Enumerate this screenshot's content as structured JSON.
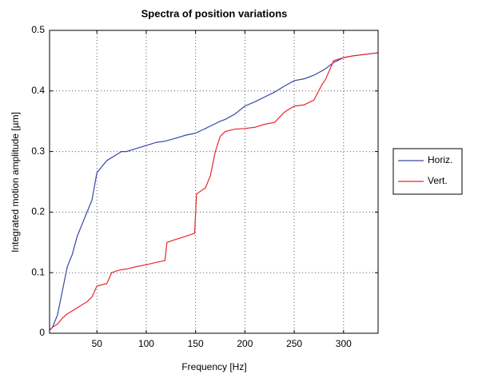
{
  "chart_data": {
    "type": "line",
    "title": "Spectra of position variations",
    "x_label": "Frequency [Hz]",
    "y_label": "Integrated motion amplitude [µm]",
    "x": [
      2,
      5,
      10,
      15,
      20,
      25,
      30,
      35,
      40,
      45,
      50,
      55,
      60,
      65,
      70,
      75,
      80,
      90,
      100,
      110,
      119,
      121,
      130,
      140,
      149,
      151,
      160,
      165,
      170,
      175,
      180,
      190,
      200,
      210,
      220,
      230,
      240,
      250,
      260,
      270,
      278,
      282,
      290,
      300,
      310,
      320,
      335
    ],
    "series": [
      {
        "name": "Horiz.",
        "color": "#3a46a8",
        "values": [
          0.005,
          0.01,
          0.03,
          0.07,
          0.11,
          0.13,
          0.16,
          0.18,
          0.2,
          0.22,
          0.265,
          0.275,
          0.285,
          0.29,
          0.295,
          0.3,
          0.3,
          0.305,
          0.31,
          0.315,
          0.317,
          0.318,
          0.322,
          0.327,
          0.33,
          0.331,
          0.338,
          0.342,
          0.346,
          0.35,
          0.353,
          0.362,
          0.375,
          0.382,
          0.39,
          0.398,
          0.408,
          0.417,
          0.42,
          0.426,
          0.433,
          0.437,
          0.447,
          0.455,
          0.458,
          0.46,
          0.463
        ]
      },
      {
        "name": "Vert.",
        "color": "#e8282c",
        "values": [
          0.005,
          0.01,
          0.015,
          0.025,
          0.032,
          0.037,
          0.042,
          0.047,
          0.052,
          0.06,
          0.078,
          0.08,
          0.082,
          0.1,
          0.103,
          0.105,
          0.106,
          0.11,
          0.113,
          0.117,
          0.12,
          0.15,
          0.155,
          0.16,
          0.165,
          0.23,
          0.24,
          0.26,
          0.3,
          0.325,
          0.333,
          0.337,
          0.338,
          0.34,
          0.345,
          0.348,
          0.365,
          0.375,
          0.377,
          0.385,
          0.41,
          0.42,
          0.45,
          0.455,
          0.458,
          0.46,
          0.463
        ]
      }
    ],
    "xlim": [
      2,
      335
    ],
    "xticks": [
      50,
      100,
      150,
      200,
      250,
      300
    ],
    "ylim": [
      0,
      0.5
    ],
    "yticks": [
      0,
      0.1,
      0.2,
      0.3,
      0.4,
      0.5
    ],
    "grid": true,
    "legend": "outside-right"
  }
}
